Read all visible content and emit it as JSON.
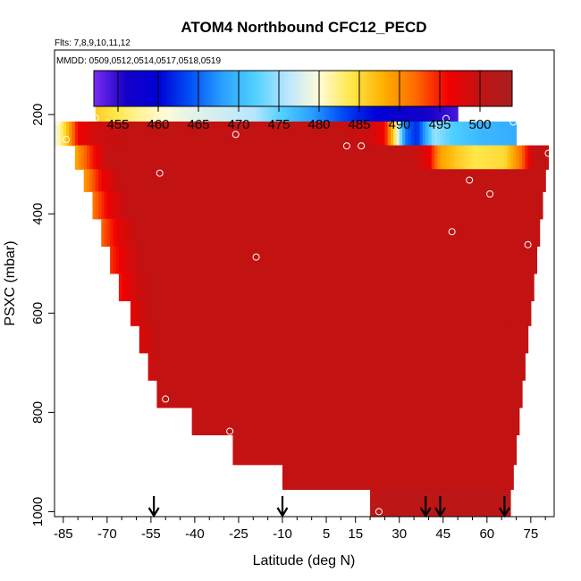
{
  "chart_data": {
    "type": "heatmap",
    "title": "ATOM4 Northbound CFC12_PECD",
    "flights_note": "Flts: 7,8,9,10,11,12",
    "dates_note": "MMDD: 0509,0512,0514,0517,0518,0519",
    "xlabel": "Latitude (deg N)",
    "ylabel": "PSXC (mbar)",
    "xlim": [
      -88,
      83
    ],
    "ylim": [
      1010,
      70
    ],
    "x_ticks": [
      -85,
      -70,
      -55,
      -40,
      -25,
      -10,
      5,
      15,
      30,
      45,
      60,
      75
    ],
    "x_tick_labels": [
      "-85",
      "-70",
      "-55",
      "-40",
      "-25",
      "-10",
      "5",
      "15",
      "30",
      "45",
      "60",
      "75"
    ],
    "y_ticks": [
      200,
      400,
      600,
      800,
      1000
    ],
    "y_tick_labels": [
      "200",
      "400",
      "600",
      "800",
      "1000"
    ],
    "colorbar": {
      "min": 452,
      "max": 504,
      "ticks": [
        455,
        460,
        465,
        470,
        475,
        480,
        485,
        490,
        495,
        500
      ],
      "tick_labels": [
        "455",
        "460",
        "465",
        "470",
        "475",
        "480",
        "485",
        "490",
        "495",
        "500"
      ],
      "colors": [
        "#7b2cf0",
        "#1500c8",
        "#0000d6",
        "#0050f8",
        "#2aa0ff",
        "#4fd0ff",
        "#b8e6ff",
        "#fffbd8",
        "#ffe84a",
        "#ffb000",
        "#ff6a00",
        "#f20000",
        "#c21212",
        "#a82020"
      ]
    },
    "layers": [
      {
        "p_top": 168,
        "p_bot": 214,
        "lat_start": -74,
        "lat_end": 50,
        "value_stops": [
          [
            -74,
            486
          ],
          [
            -60,
            482
          ],
          [
            -45,
            479
          ],
          [
            -20,
            476
          ],
          [
            0,
            468
          ],
          [
            15,
            462
          ],
          [
            30,
            458
          ],
          [
            40,
            456
          ],
          [
            50,
            454
          ]
        ]
      },
      {
        "p_top": 214,
        "p_bot": 262,
        "lat_start": -88,
        "lat_end": 70,
        "value_stops": [
          [
            -88,
            478
          ],
          [
            -84,
            486
          ],
          [
            -80,
            496
          ],
          [
            -74,
            499
          ],
          [
            -60,
            500
          ],
          [
            10,
            500
          ],
          [
            20,
            499
          ],
          [
            25,
            496
          ],
          [
            28,
            486
          ],
          [
            32,
            466
          ],
          [
            36,
            462
          ],
          [
            42,
            475
          ],
          [
            48,
            472
          ],
          [
            58,
            470
          ],
          [
            70,
            469
          ]
        ]
      },
      {
        "p_top": 262,
        "p_bot": 310,
        "lat_start": -81,
        "lat_end": 81,
        "value_stops": [
          [
            -81,
            488
          ],
          [
            -76,
            494
          ],
          [
            -70,
            500
          ],
          [
            35,
            500
          ],
          [
            40,
            497
          ],
          [
            44,
            489
          ],
          [
            50,
            486
          ],
          [
            56,
            484
          ],
          [
            66,
            485
          ],
          [
            72,
            492
          ],
          [
            76,
            500
          ],
          [
            81,
            500
          ]
        ]
      },
      {
        "p_top": 310,
        "p_bot": 355,
        "lat_start": -78,
        "lat_end": 80,
        "value_stops": [
          [
            -78,
            489
          ],
          [
            -72,
            496
          ],
          [
            -66,
            500
          ],
          [
            80,
            500
          ]
        ]
      },
      {
        "p_top": 355,
        "p_bot": 410,
        "lat_start": -75,
        "lat_end": 79,
        "value_stops": [
          [
            -75,
            491
          ],
          [
            -69,
            497
          ],
          [
            -63,
            500
          ],
          [
            79,
            500
          ]
        ]
      },
      {
        "p_top": 410,
        "p_bot": 465,
        "lat_start": -72,
        "lat_end": 78,
        "value_stops": [
          [
            -72,
            492
          ],
          [
            -66,
            497
          ],
          [
            -60,
            500
          ],
          [
            78,
            500
          ]
        ]
      },
      {
        "p_top": 465,
        "p_bot": 520,
        "lat_start": -69,
        "lat_end": 77,
        "value_stops": [
          [
            -69,
            494
          ],
          [
            -63,
            498
          ],
          [
            -58,
            500
          ],
          [
            77,
            500
          ]
        ]
      },
      {
        "p_top": 520,
        "p_bot": 575,
        "lat_start": -66,
        "lat_end": 76,
        "value_stops": [
          [
            -66,
            495
          ],
          [
            -60,
            499
          ],
          [
            -55,
            500
          ],
          [
            76,
            500
          ]
        ]
      },
      {
        "p_top": 575,
        "p_bot": 625,
        "lat_start": -62,
        "lat_end": 75,
        "value_stops": [
          [
            -62,
            497
          ],
          [
            -56,
            500
          ],
          [
            75,
            500
          ]
        ]
      },
      {
        "p_top": 625,
        "p_bot": 680,
        "lat_start": -59,
        "lat_end": 74,
        "value_stops": [
          [
            -59,
            498
          ],
          [
            -53,
            500
          ],
          [
            74,
            500
          ]
        ]
      },
      {
        "p_top": 680,
        "p_bot": 735,
        "lat_start": -56,
        "lat_end": 73,
        "value_stops": [
          [
            -56,
            499
          ],
          [
            -51,
            500
          ],
          [
            73,
            500
          ]
        ]
      },
      {
        "p_top": 735,
        "p_bot": 790,
        "lat_start": -53,
        "lat_end": 72,
        "value_stops": [
          [
            -53,
            500
          ],
          [
            72,
            500
          ]
        ]
      },
      {
        "p_top": 790,
        "p_bot": 845,
        "lat_start": -41,
        "lat_end": 71,
        "value_stops": [
          [
            -41,
            500
          ],
          [
            71,
            500
          ]
        ]
      },
      {
        "p_top": 845,
        "p_bot": 905,
        "lat_start": -27,
        "lat_end": 70,
        "value_stops": [
          [
            -27,
            500
          ],
          [
            70,
            500
          ]
        ]
      },
      {
        "p_top": 905,
        "p_bot": 955,
        "lat_start": -10,
        "lat_end": 69,
        "value_stops": [
          [
            -10,
            500
          ],
          [
            69,
            500
          ]
        ]
      },
      {
        "p_top": 955,
        "p_bot": 1010,
        "lat_start": 20,
        "lat_end": 68,
        "value_stops": [
          [
            20,
            501
          ],
          [
            68,
            501
          ]
        ]
      }
    ],
    "points": [
      {
        "lat": -74,
        "p": 207
      },
      {
        "lat": -87,
        "p": 213
      },
      {
        "lat": -84,
        "p": 250
      },
      {
        "lat": -26,
        "p": 240
      },
      {
        "lat": 12,
        "p": 263
      },
      {
        "lat": 17,
        "p": 263
      },
      {
        "lat": 46,
        "p": 208
      },
      {
        "lat": 69,
        "p": 215
      },
      {
        "lat": 81,
        "p": 278
      },
      {
        "lat": -52,
        "p": 318
      },
      {
        "lat": 54,
        "p": 332
      },
      {
        "lat": 61,
        "p": 360
      },
      {
        "lat": 48,
        "p": 436
      },
      {
        "lat": 74,
        "p": 462
      },
      {
        "lat": -19,
        "p": 487
      },
      {
        "lat": -50,
        "p": 773
      },
      {
        "lat": -28,
        "p": 838
      },
      {
        "lat": 23,
        "p": 1000
      },
      {
        "lat": 71,
        "p": 985
      }
    ],
    "arrows": [
      -54,
      -10,
      39,
      44,
      66
    ]
  }
}
